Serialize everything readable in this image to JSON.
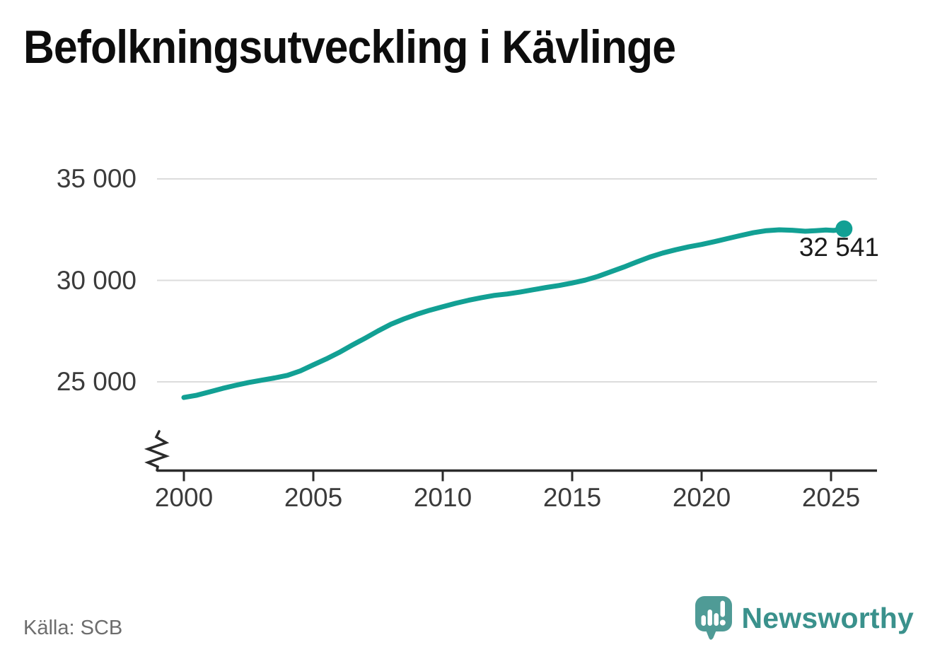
{
  "title": "Befolkningsutveckling i Kävlinge",
  "source": "Källa: SCB",
  "branding": {
    "name": "Newsworthy"
  },
  "colors": {
    "line": "#12a094",
    "marker": "#12a094",
    "grid": "#dcdcdc",
    "axis": "#2b2b2b",
    "tick_label": "#3b3b3b",
    "annotation": "#1b1b1b",
    "title": "#0d0d0d",
    "source_text": "#6d6d6d",
    "brand_icon": "#4f9b96",
    "brand_text": "#3a918c",
    "background": "#ffffff"
  },
  "chart_data": {
    "type": "line",
    "title": "Befolkningsutveckling i Kävlinge",
    "source": "Källa: SCB",
    "grid": "horizontal-only",
    "axis_break": true,
    "xlim": [
      1999.0,
      2026.8
    ],
    "x_ticks": [
      2000,
      2005,
      2010,
      2015,
      2020,
      2025
    ],
    "y_ticks": [
      {
        "value": 35000,
        "label": "35 000"
      },
      {
        "value": 30000,
        "label": "30 000"
      },
      {
        "value": 25000,
        "label": "25 000"
      }
    ],
    "series": [
      {
        "points": [
          [
            2000.0,
            24230
          ],
          [
            2000.5,
            24340
          ],
          [
            2001.0,
            24510
          ],
          [
            2001.5,
            24680
          ],
          [
            2002.0,
            24830
          ],
          [
            2002.5,
            24970
          ],
          [
            2003.0,
            25080
          ],
          [
            2003.5,
            25190
          ],
          [
            2004.0,
            25320
          ],
          [
            2004.5,
            25540
          ],
          [
            2005.0,
            25840
          ],
          [
            2005.5,
            26130
          ],
          [
            2006.0,
            26450
          ],
          [
            2006.5,
            26810
          ],
          [
            2007.0,
            27150
          ],
          [
            2007.5,
            27510
          ],
          [
            2008.0,
            27840
          ],
          [
            2008.5,
            28100
          ],
          [
            2009.0,
            28330
          ],
          [
            2009.5,
            28530
          ],
          [
            2010.0,
            28700
          ],
          [
            2010.5,
            28870
          ],
          [
            2011.0,
            29020
          ],
          [
            2011.5,
            29150
          ],
          [
            2012.0,
            29260
          ],
          [
            2012.5,
            29330
          ],
          [
            2013.0,
            29430
          ],
          [
            2013.5,
            29540
          ],
          [
            2014.0,
            29650
          ],
          [
            2014.5,
            29750
          ],
          [
            2015.0,
            29870
          ],
          [
            2015.5,
            30010
          ],
          [
            2016.0,
            30200
          ],
          [
            2016.5,
            30430
          ],
          [
            2017.0,
            30660
          ],
          [
            2017.5,
            30910
          ],
          [
            2018.0,
            31150
          ],
          [
            2018.5,
            31350
          ],
          [
            2019.0,
            31510
          ],
          [
            2019.5,
            31650
          ],
          [
            2020.0,
            31770
          ],
          [
            2020.5,
            31910
          ],
          [
            2021.0,
            32060
          ],
          [
            2021.5,
            32210
          ],
          [
            2022.0,
            32350
          ],
          [
            2022.5,
            32450
          ],
          [
            2023.0,
            32490
          ],
          [
            2023.5,
            32470
          ],
          [
            2024.0,
            32420
          ],
          [
            2024.4,
            32450
          ],
          [
            2024.8,
            32480
          ],
          [
            2025.1,
            32460
          ],
          [
            2025.5,
            32541
          ]
        ]
      }
    ],
    "last_point": {
      "year": 2025.5,
      "value": 32541,
      "label": "32 541"
    }
  }
}
